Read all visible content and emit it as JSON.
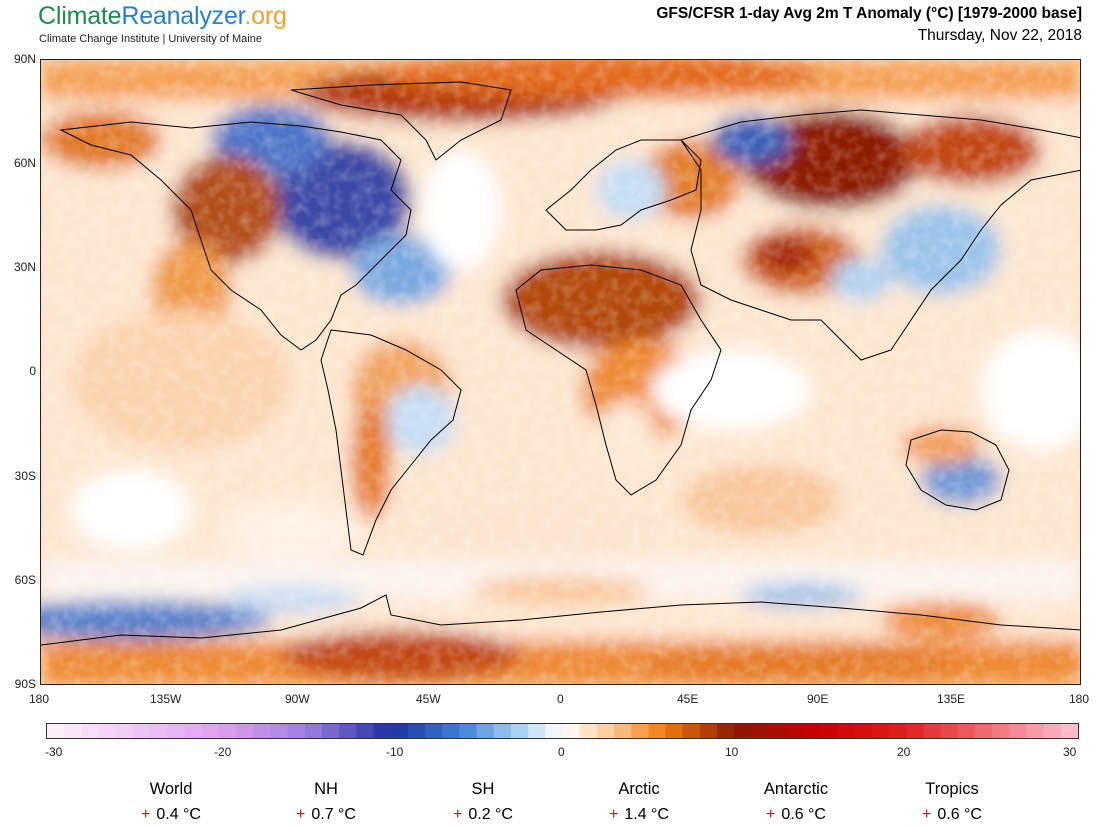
{
  "brand": {
    "part1": "Climate",
    "part2": "Reanalyzer",
    "part3": ".org",
    "subtitle": "Climate Change Institute | University of Maine"
  },
  "header": {
    "title": "GFS/CFSR 1-day Avg 2m T Anomaly (°C) [1979-2000 base]",
    "date": "Thursday, Nov 22, 2018"
  },
  "axes": {
    "lat_labels": [
      "90N",
      "60N",
      "30N",
      "0",
      "30S",
      "60S",
      "90S"
    ],
    "lon_labels": [
      "180",
      "135W",
      "90W",
      "45W",
      "0",
      "45E",
      "90E",
      "135E",
      "180"
    ]
  },
  "colorbar": {
    "labels": [
      "-30",
      "-20",
      "-10",
      "0",
      "10",
      "20",
      "30"
    ],
    "min": -30,
    "max": 30,
    "stops": [
      {
        "v": -30,
        "c": "#fdf3fb"
      },
      {
        "v": -20,
        "c": "#e0a0f0"
      },
      {
        "v": -15,
        "c": "#a080e0"
      },
      {
        "v": -10,
        "c": "#2030a0"
      },
      {
        "v": -6,
        "c": "#3f7fd6"
      },
      {
        "v": -3,
        "c": "#9cc8ee"
      },
      {
        "v": 0,
        "c": "#ffffff"
      },
      {
        "v": 3,
        "c": "#fcc690"
      },
      {
        "v": 6,
        "c": "#ef7a10"
      },
      {
        "v": 10,
        "c": "#8a1a00"
      },
      {
        "v": 15,
        "c": "#cc0000"
      },
      {
        "v": 20,
        "c": "#e02020"
      },
      {
        "v": 30,
        "c": "#ffc4d4"
      }
    ]
  },
  "stats": [
    {
      "name": "World",
      "sign": "+",
      "value": "0.4 °C"
    },
    {
      "name": "NH",
      "sign": "+",
      "value": "0.7 °C"
    },
    {
      "name": "SH",
      "sign": "+",
      "value": "0.2 °C"
    },
    {
      "name": "Arctic",
      "sign": "+",
      "value": "1.4 °C"
    },
    {
      "name": "Antarctic",
      "sign": "+",
      "value": "0.6 °C"
    },
    {
      "name": "Tropics",
      "sign": "+",
      "value": "0.6 °C"
    }
  ]
}
